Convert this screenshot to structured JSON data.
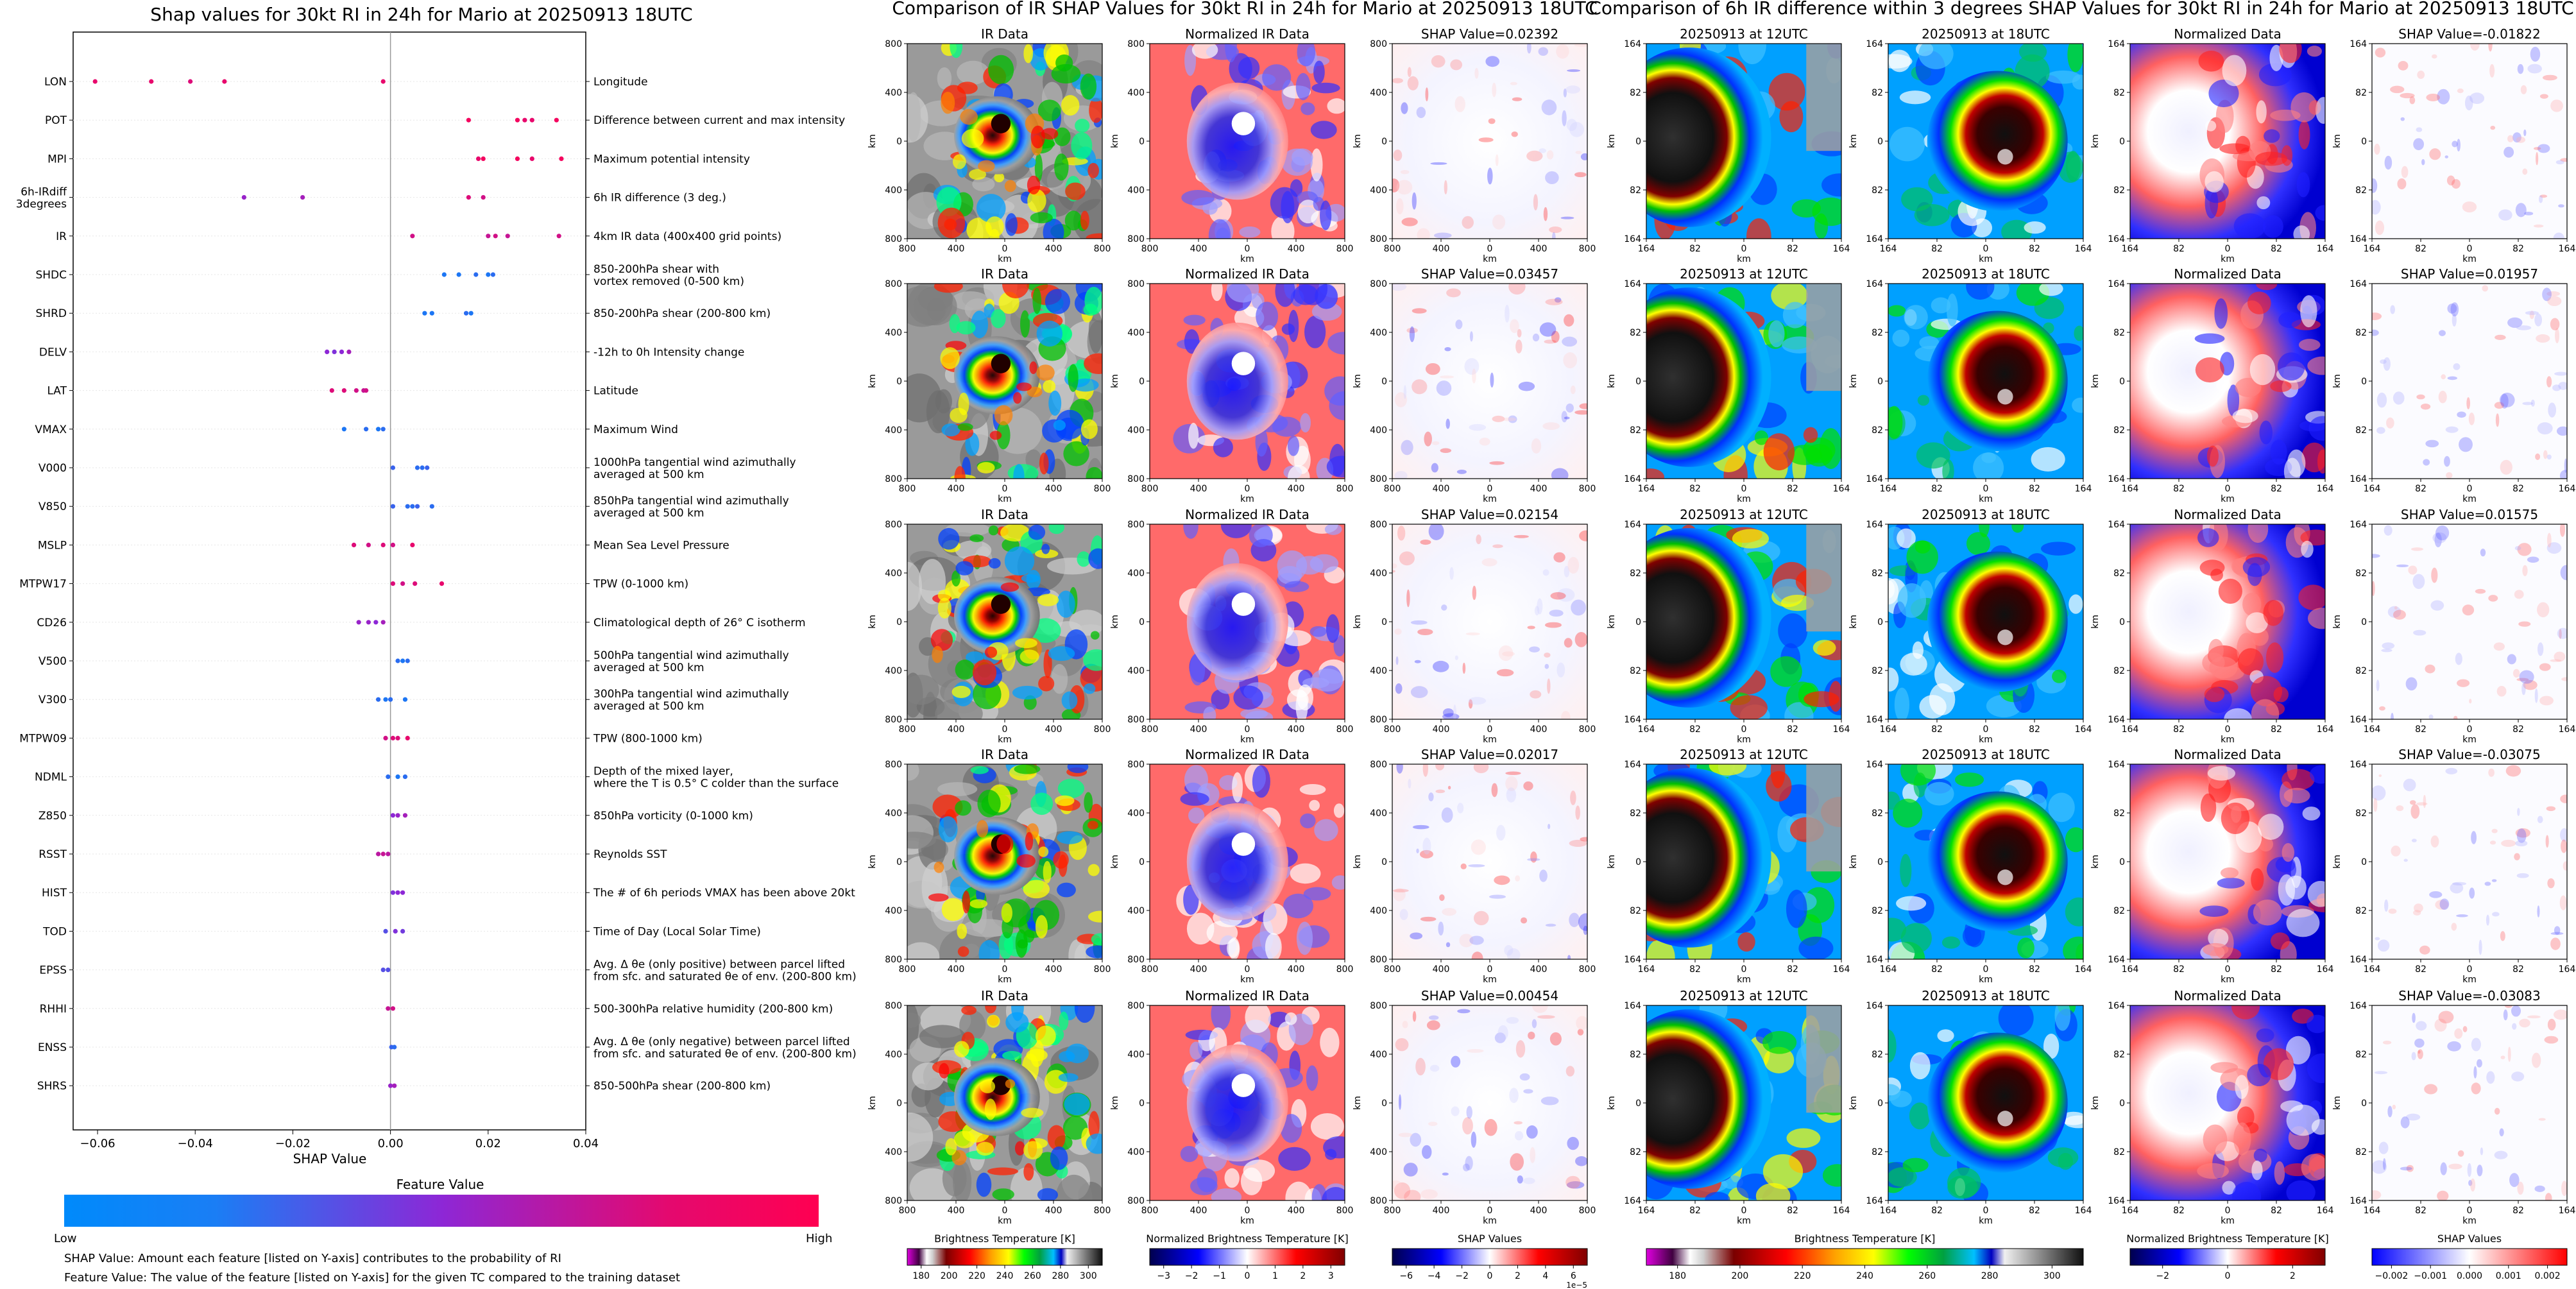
{
  "left": {
    "title": "Shap values for 30kt RI in 24h for Mario at 20250913 18UTC",
    "xlabel": "SHAP Value",
    "feature_value_label": "Feature Value",
    "low_label": "Low",
    "high_label": "High",
    "footnote1": "SHAP Value: Amount each feature [listed on Y-axis] contributes to the probability of RI",
    "footnote2": "Feature Value: The value of the feature [listed on Y-axis] for the given TC compared to the training dataset"
  },
  "ir_section": {
    "title": "Comparison of IR SHAP Values for 30kt RI in 24h for Mario at 20250913 18UTC",
    "col_titles": [
      "IR Data",
      "Normalized IR Data"
    ],
    "shap_titles": [
      "SHAP Value=0.02392",
      "SHAP Value=0.03457",
      "SHAP Value=0.02154",
      "SHAP Value=0.02017",
      "SHAP Value=0.00454"
    ],
    "axis_unit": "km",
    "ticks": [
      "800",
      "400",
      "0",
      "400",
      "800"
    ],
    "cbars": [
      {
        "label": "Brightness Temperature [K]",
        "ticks": [
          "180",
          "200",
          "220",
          "240",
          "260",
          "280",
          "300"
        ]
      },
      {
        "label": "Normalized Brightness Temperature [K]",
        "ticks": [
          "−3",
          "−2",
          "−1",
          "0",
          "1",
          "2",
          "3"
        ]
      },
      {
        "label": "SHAP Values",
        "ticks": [
          "−6",
          "−4",
          "−2",
          "0",
          "2",
          "4",
          "6"
        ],
        "offset": "1e−5"
      }
    ]
  },
  "diff_section": {
    "title": "Comparison of 6h IR difference within 3 degrees SHAP Values for 30kt RI in 24h for Mario at 20250913 18UTC",
    "col_titles": [
      "20250913 at 12UTC",
      "20250913 at 18UTC",
      "Normalized Data"
    ],
    "shap_titles": [
      "SHAP Value=-0.01822",
      "SHAP Value=0.01957",
      "SHAP Value=0.01575",
      "SHAP Value=-0.03075",
      "SHAP Value=-0.03083"
    ],
    "axis_unit": "km",
    "ticks": [
      "164",
      "82",
      "0",
      "82",
      "164"
    ],
    "cbars": [
      {
        "label": "Brightness Temperature [K]",
        "ticks": [
          "180",
          "200",
          "220",
          "240",
          "260",
          "280",
          "300"
        ]
      },
      {
        "label": "Normalized Brightness Temperature [K]",
        "ticks": [
          "−2",
          "0",
          "2"
        ]
      },
      {
        "label": "SHAP Values",
        "ticks": [
          "−0.002",
          "−0.001",
          "0.000",
          "0.001",
          "0.002"
        ]
      }
    ]
  },
  "colors": {
    "low": "#008afb",
    "mid": "#8d27d6",
    "high": "#ff0051"
  },
  "chart_data": {
    "type": "scatter",
    "title": "Shap values for 30kt RI in 24h for Mario at 20250913 18UTC",
    "xlabel": "SHAP Value",
    "xlim": [
      -0.065,
      0.04
    ],
    "xticks": [
      "−0.06",
      "−0.04",
      "−0.02",
      "0.00",
      "0.02",
      "0.04"
    ],
    "xtick_values": [
      -0.06,
      -0.04,
      -0.02,
      0.0,
      0.02,
      0.04
    ],
    "features": [
      {
        "code": "LON",
        "desc": "Longitude",
        "points": [
          {
            "x": -0.0605,
            "v": 0.9
          },
          {
            "x": -0.049,
            "v": 0.9
          },
          {
            "x": -0.041,
            "v": 0.85
          },
          {
            "x": -0.034,
            "v": 0.9
          },
          {
            "x": -0.0015,
            "v": 0.9
          }
        ]
      },
      {
        "code": "POT",
        "desc": "Difference between current and max intensity",
        "points": [
          {
            "x": 0.016,
            "v": 0.95
          },
          {
            "x": 0.026,
            "v": 0.95
          },
          {
            "x": 0.0275,
            "v": 0.9
          },
          {
            "x": 0.029,
            "v": 0.9
          },
          {
            "x": 0.034,
            "v": 0.95
          }
        ]
      },
      {
        "code": "MPI",
        "desc": "Maximum potential intensity",
        "points": [
          {
            "x": 0.018,
            "v": 0.9
          },
          {
            "x": 0.019,
            "v": 0.95
          },
          {
            "x": 0.026,
            "v": 0.95
          },
          {
            "x": 0.029,
            "v": 0.9
          },
          {
            "x": 0.035,
            "v": 0.95
          }
        ]
      },
      {
        "code": "6h-IRdiff\n3degrees",
        "desc": "6h IR difference (3 deg.)",
        "points": [
          {
            "x": -0.03,
            "v": 0.55
          },
          {
            "x": -0.018,
            "v": 0.6
          },
          {
            "x": 0.016,
            "v": 0.85
          },
          {
            "x": 0.019,
            "v": 0.8
          }
        ]
      },
      {
        "code": "IR",
        "desc": "4km IR data (400x400 grid points)",
        "points": [
          {
            "x": 0.0045,
            "v": 0.8
          },
          {
            "x": 0.02,
            "v": 0.75
          },
          {
            "x": 0.0215,
            "v": 0.8
          },
          {
            "x": 0.024,
            "v": 0.75
          },
          {
            "x": 0.0345,
            "v": 0.8
          }
        ]
      },
      {
        "code": "SHDC",
        "desc": "850-200hPa shear with\nvortex removed (0-500 km)",
        "points": [
          {
            "x": 0.011,
            "v": 0.1
          },
          {
            "x": 0.014,
            "v": 0.1
          },
          {
            "x": 0.0175,
            "v": 0.15
          },
          {
            "x": 0.02,
            "v": 0.1
          },
          {
            "x": 0.021,
            "v": 0.15
          }
        ]
      },
      {
        "code": "SHRD",
        "desc": "850-200hPa shear (200-800 km)",
        "points": [
          {
            "x": 0.007,
            "v": 0.1
          },
          {
            "x": 0.0085,
            "v": 0.1
          },
          {
            "x": 0.0155,
            "v": 0.15
          },
          {
            "x": 0.0165,
            "v": 0.1
          }
        ]
      },
      {
        "code": "DELV",
        "desc": "-12h to 0h Intensity change",
        "points": [
          {
            "x": -0.013,
            "v": 0.5
          },
          {
            "x": -0.0115,
            "v": 0.45
          },
          {
            "x": -0.01,
            "v": 0.5
          },
          {
            "x": -0.0085,
            "v": 0.6
          }
        ]
      },
      {
        "code": "LAT",
        "desc": "Latitude",
        "points": [
          {
            "x": -0.012,
            "v": 0.85
          },
          {
            "x": -0.0095,
            "v": 0.85
          },
          {
            "x": -0.007,
            "v": 0.8
          },
          {
            "x": -0.0055,
            "v": 0.75
          },
          {
            "x": -0.005,
            "v": 0.8
          }
        ]
      },
      {
        "code": "VMAX",
        "desc": "Maximum Wind",
        "points": [
          {
            "x": -0.0095,
            "v": 0.1
          },
          {
            "x": -0.005,
            "v": 0.15
          },
          {
            "x": -0.0025,
            "v": 0.1
          },
          {
            "x": -0.0015,
            "v": 0.15
          }
        ]
      },
      {
        "code": "V000",
        "desc": "1000hPa tangential wind azimuthally\naveraged at 500 km",
        "points": [
          {
            "x": 0.0005,
            "v": 0.2
          },
          {
            "x": 0.0055,
            "v": 0.15
          },
          {
            "x": 0.0065,
            "v": 0.15
          },
          {
            "x": 0.0075,
            "v": 0.2
          }
        ]
      },
      {
        "code": "V850",
        "desc": "850hPa tangential wind azimuthally\naveraged at 500 km",
        "points": [
          {
            "x": 0.0005,
            "v": 0.2
          },
          {
            "x": 0.0035,
            "v": 0.15
          },
          {
            "x": 0.0045,
            "v": 0.15
          },
          {
            "x": 0.0055,
            "v": 0.2
          },
          {
            "x": 0.0085,
            "v": 0.15
          }
        ]
      },
      {
        "code": "MSLP",
        "desc": "Mean Sea Level Pressure",
        "points": [
          {
            "x": -0.0075,
            "v": 0.85
          },
          {
            "x": -0.0045,
            "v": 0.8
          },
          {
            "x": -0.0015,
            "v": 0.85
          },
          {
            "x": 0.0005,
            "v": 0.8
          },
          {
            "x": 0.0045,
            "v": 0.9
          }
        ]
      },
      {
        "code": "MTPW17",
        "desc": "TPW (0-1000 km)",
        "points": [
          {
            "x": 0.0005,
            "v": 0.85
          },
          {
            "x": 0.0025,
            "v": 0.8
          },
          {
            "x": 0.005,
            "v": 0.85
          },
          {
            "x": 0.0105,
            "v": 0.9
          }
        ]
      },
      {
        "code": "CD26",
        "desc": "Climatological depth of 26° C isotherm",
        "points": [
          {
            "x": -0.0065,
            "v": 0.55
          },
          {
            "x": -0.0045,
            "v": 0.55
          },
          {
            "x": -0.003,
            "v": 0.5
          },
          {
            "x": -0.0015,
            "v": 0.6
          }
        ]
      },
      {
        "code": "V500",
        "desc": "500hPa tangential wind azimuthally\naveraged at 500 km",
        "points": [
          {
            "x": 0.0015,
            "v": 0.15
          },
          {
            "x": 0.0025,
            "v": 0.1
          },
          {
            "x": 0.0035,
            "v": 0.15
          }
        ]
      },
      {
        "code": "V300",
        "desc": "300hPa tangential wind azimuthally\naveraged at 500 km",
        "points": [
          {
            "x": -0.0025,
            "v": 0.15
          },
          {
            "x": -0.001,
            "v": 0.1
          },
          {
            "x": 0.0,
            "v": 0.15
          },
          {
            "x": 0.003,
            "v": 0.1
          }
        ]
      },
      {
        "code": "MTPW09",
        "desc": "TPW (800-1000 km)",
        "points": [
          {
            "x": -0.001,
            "v": 0.8
          },
          {
            "x": 0.0005,
            "v": 0.85
          },
          {
            "x": 0.0015,
            "v": 0.85
          },
          {
            "x": 0.0035,
            "v": 0.9
          }
        ]
      },
      {
        "code": "NDML",
        "desc": "Depth of the mixed layer,\nwhere the T is 0.5° C colder than the surface",
        "points": [
          {
            "x": -0.0005,
            "v": 0.15
          },
          {
            "x": 0.0015,
            "v": 0.1
          },
          {
            "x": 0.003,
            "v": 0.15
          }
        ]
      },
      {
        "code": "Z850",
        "desc": "850hPa vorticity (0-1000 km)",
        "points": [
          {
            "x": 0.0005,
            "v": 0.5
          },
          {
            "x": 0.0015,
            "v": 0.55
          },
          {
            "x": 0.003,
            "v": 0.6
          }
        ]
      },
      {
        "code": "RSST",
        "desc": "Reynolds SST",
        "points": [
          {
            "x": -0.0025,
            "v": 0.7
          },
          {
            "x": -0.0015,
            "v": 0.75
          },
          {
            "x": -0.0005,
            "v": 0.7
          }
        ]
      },
      {
        "code": "HIST",
        "desc": "The # of 6h periods VMAX has been above 20kt",
        "points": [
          {
            "x": 0.0005,
            "v": 0.45
          },
          {
            "x": 0.0015,
            "v": 0.5
          },
          {
            "x": 0.0025,
            "v": 0.5
          }
        ]
      },
      {
        "code": "TOD",
        "desc": "Time of Day (Local Solar Time)",
        "points": [
          {
            "x": -0.001,
            "v": 0.3
          },
          {
            "x": 0.001,
            "v": 0.45
          },
          {
            "x": 0.0025,
            "v": 0.4
          }
        ]
      },
      {
        "code": "EPSS",
        "desc": "Avg. Δ θe (only positive) between parcel lifted\nfrom sfc. and saturated θe of env. (200-800 km)",
        "points": [
          {
            "x": -0.0015,
            "v": 0.3
          },
          {
            "x": -0.0005,
            "v": 0.3
          }
        ]
      },
      {
        "code": "RHHI",
        "desc": "500-300hPa relative humidity (200-800 km)",
        "points": [
          {
            "x": -0.0005,
            "v": 0.75
          },
          {
            "x": 0.0005,
            "v": 0.8
          }
        ]
      },
      {
        "code": "ENSS",
        "desc": "Avg. Δ θe (only negative) between parcel lifted\nfrom sfc. and saturated θe of env. (200-800 km)",
        "points": [
          {
            "x": 0.0002,
            "v": 0.2
          },
          {
            "x": 0.0008,
            "v": 0.15
          }
        ]
      },
      {
        "code": "SHRS",
        "desc": "850-500hPa shear (200-800 km)",
        "points": [
          {
            "x": 0.0,
            "v": 0.55
          },
          {
            "x": 0.0008,
            "v": 0.6
          }
        ]
      }
    ]
  }
}
